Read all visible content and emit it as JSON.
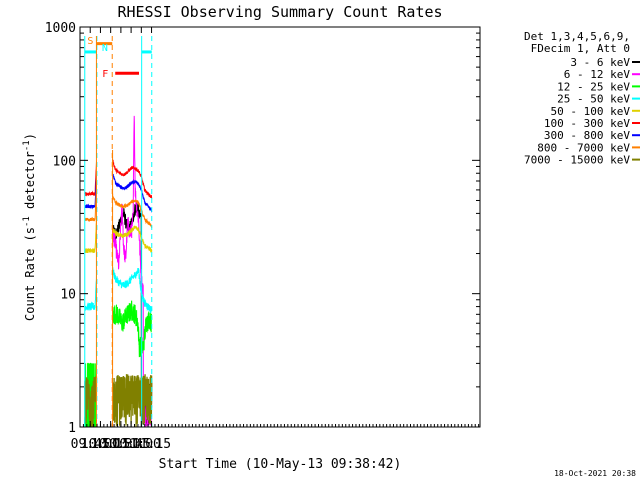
{
  "chart_data": {
    "type": "line",
    "title": "RHESSI Observing Summary Count Rates",
    "xlabel": "Start Time (10-May-13 09:38:42)",
    "ylabel": "Count Rate (s⁻¹ detector⁻¹)",
    "ylabel_base": "Count Rate (s",
    "ylabel_sup1": "-1",
    "ylabel_mid": " detector",
    "ylabel_sup2": "-1",
    "ylabel_end": ")",
    "yscale": "log",
    "ylim": [
      1,
      1000
    ],
    "xlim_minutes": [
      570,
      1157
    ],
    "x_ticks": [
      {
        "label": "09:45",
        "minute": 585
      },
      {
        "label": "10:00",
        "minute": 600
      },
      {
        "label": "10:15",
        "minute": 615
      },
      {
        "label": "10:30",
        "minute": 630
      },
      {
        "label": "10:45",
        "minute": 645
      },
      {
        "label": "11:00",
        "minute": 660
      },
      {
        "label": "11:15",
        "minute": 675
      }
    ],
    "y_ticks": [
      {
        "label": "1",
        "value": 1
      },
      {
        "label": "10",
        "value": 10
      },
      {
        "label": "100",
        "value": 100
      },
      {
        "label": "1000",
        "value": 1000
      }
    ],
    "legend_header": [
      "Det 1,3,4,5,6,9,",
      "FDecim 1, Att 0"
    ],
    "legend_placement": "right",
    "footer_date": "18-Oct-2021 20:38",
    "intervals": {
      "night": {
        "label": "N",
        "color": "#00ffff",
        "x": [
          577,
          594.8
        ]
      },
      "saa": {
        "label": "S",
        "color": "#ff8000",
        "x": [
          594.1,
          617.3
        ]
      },
      "flare": {
        "label": "F",
        "color": "#ff0000",
        "x": [
          621.7,
          656.6
        ]
      },
      "night2_start": 660.5,
      "night_level": 650
    },
    "series": [
      {
        "name": "3 - 6 keV",
        "color": "#000000",
        "pre": 1.0,
        "post_points": [
          [
            617.8,
            30
          ],
          [
            622,
            28
          ],
          [
            626,
            30
          ],
          [
            630,
            36
          ],
          [
            634,
            40
          ],
          [
            638,
            33
          ],
          [
            642,
            30
          ],
          [
            646,
            34
          ],
          [
            650,
            42
          ],
          [
            654,
            46
          ],
          [
            657,
            38
          ]
        ],
        "noise": 0.12
      },
      {
        "name": "6 - 12 keV",
        "color": "#ff00ff",
        "pre": 1.0,
        "post_points": [
          [
            617.8,
            28
          ],
          [
            621,
            25
          ],
          [
            624,
            20
          ],
          [
            627,
            16
          ],
          [
            630,
            33
          ],
          [
            632,
            44
          ],
          [
            634,
            22
          ],
          [
            637,
            18
          ],
          [
            640,
            35
          ],
          [
            643,
            28
          ],
          [
            646,
            30
          ],
          [
            648,
            38
          ],
          [
            649.5,
            260
          ],
          [
            651,
            60
          ],
          [
            653,
            45
          ],
          [
            656,
            36
          ],
          [
            658,
            20
          ],
          [
            660,
            13
          ],
          [
            662,
            11
          ]
        ],
        "noise": 0.14
      },
      {
        "name": "12 - 25 keV",
        "color": "#00ff00",
        "pre": 2.6,
        "post_points": [
          [
            617.8,
            7
          ],
          [
            625,
            7
          ],
          [
            632,
            6
          ],
          [
            640,
            7
          ],
          [
            646,
            7.5
          ],
          [
            651,
            7
          ],
          [
            655,
            6
          ],
          [
            657,
            4
          ],
          [
            663,
            4
          ],
          [
            667,
            6
          ],
          [
            672,
            6.5
          ],
          [
            675,
            6
          ]
        ],
        "noise": 0.18
      },
      {
        "name": "25 - 50 keV",
        "color": "#00ffff",
        "pre": 8.0,
        "post_points": [
          [
            617.8,
            15
          ],
          [
            622,
            13
          ],
          [
            628,
            12
          ],
          [
            634,
            11.5
          ],
          [
            640,
            12
          ],
          [
            646,
            13
          ],
          [
            652,
            14
          ],
          [
            656,
            15
          ],
          [
            660,
            10
          ],
          [
            665,
            8.5
          ],
          [
            670,
            8
          ],
          [
            675,
            7.5
          ]
        ],
        "noise": 0.07
      },
      {
        "name": "50 - 100 keV",
        "color": "#e0d000",
        "pre": 21.0,
        "post_points": [
          [
            617.8,
            30
          ],
          [
            625,
            28
          ],
          [
            632,
            27
          ],
          [
            640,
            28
          ],
          [
            646,
            30
          ],
          [
            652,
            32
          ],
          [
            656,
            30
          ],
          [
            660,
            26
          ],
          [
            665,
            23
          ],
          [
            670,
            22
          ],
          [
            675,
            21
          ]
        ],
        "noise": 0.04
      },
      {
        "name": "100 - 300 keV",
        "color": "#ff0000",
        "pre": 56.0,
        "post_points": [
          [
            617.8,
            100
          ],
          [
            622,
            85
          ],
          [
            628,
            80
          ],
          [
            634,
            78
          ],
          [
            640,
            82
          ],
          [
            646,
            88
          ],
          [
            652,
            87
          ],
          [
            656,
            83
          ],
          [
            660,
            75
          ],
          [
            665,
            60
          ],
          [
            670,
            56
          ],
          [
            675,
            53
          ]
        ],
        "noise": 0.03
      },
      {
        "name": "300 - 800 keV",
        "color": "#0000ff",
        "pre": 45.0,
        "post_points": [
          [
            617.8,
            80
          ],
          [
            622,
            68
          ],
          [
            628,
            64
          ],
          [
            634,
            61
          ],
          [
            640,
            64
          ],
          [
            646,
            68
          ],
          [
            652,
            69
          ],
          [
            656,
            66
          ],
          [
            660,
            60
          ],
          [
            665,
            48
          ],
          [
            670,
            45
          ],
          [
            675,
            42
          ]
        ],
        "noise": 0.03
      },
      {
        "name": "800 - 7000 keV",
        "color": "#ff8000",
        "pre": 36.0,
        "post_points": [
          [
            617.8,
            55
          ],
          [
            622,
            48
          ],
          [
            628,
            46
          ],
          [
            634,
            45
          ],
          [
            640,
            46
          ],
          [
            646,
            49
          ],
          [
            652,
            50
          ],
          [
            656,
            48
          ],
          [
            660,
            42
          ],
          [
            665,
            36
          ],
          [
            670,
            34
          ],
          [
            675,
            32
          ]
        ],
        "noise": 0.03
      },
      {
        "name": "7000 - 15000 keV",
        "color": "#808000",
        "pre": 1.0,
        "post_points": [
          [
            617.8,
            1.3
          ],
          [
            630,
            1.4
          ],
          [
            640,
            1.5
          ],
          [
            650,
            1.6
          ],
          [
            660,
            1.7
          ],
          [
            675,
            1.6
          ]
        ],
        "noise": 0.2
      }
    ]
  }
}
